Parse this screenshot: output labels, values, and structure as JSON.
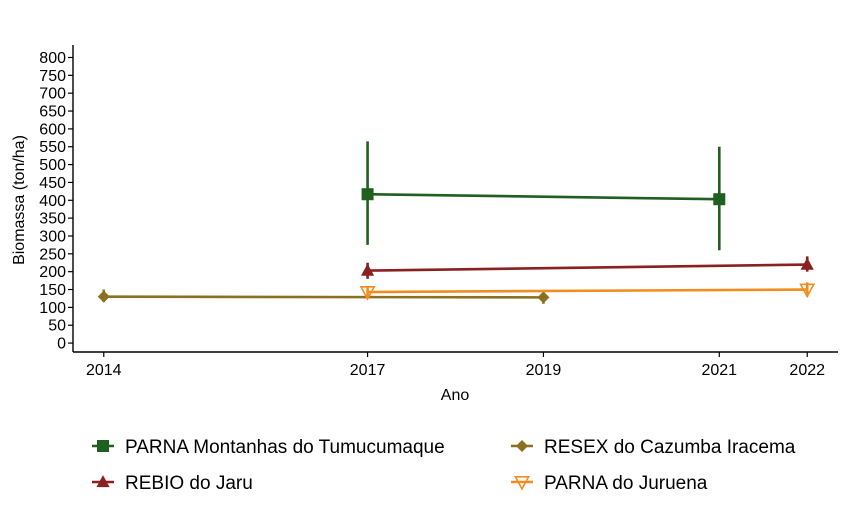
{
  "chart_data": {
    "type": "line",
    "xlabel": "Ano",
    "ylabel": "Biomassa (ton/ha)",
    "x_ticks": [
      2014,
      2017,
      2019,
      2021,
      2022
    ],
    "y_ticks": [
      0,
      50,
      100,
      150,
      200,
      250,
      300,
      350,
      400,
      450,
      500,
      550,
      600,
      650,
      700,
      750,
      800
    ],
    "xlim": [
      2013.65,
      2022.35
    ],
    "ylim": [
      -25,
      835
    ],
    "grid": false,
    "legend_position": "bottom",
    "series": [
      {
        "name": "PARNA Montanhas do Tumucumaque",
        "color": "#1f5f1f",
        "marker": "square",
        "points": [
          {
            "x": 2017,
            "y": 417,
            "ymin": 275,
            "ymax": 565
          },
          {
            "x": 2021,
            "y": 403,
            "ymin": 260,
            "ymax": 550
          }
        ]
      },
      {
        "name": "RESEX do Cazumba Iracema",
        "color": "#8b7020",
        "marker": "diamond",
        "points": [
          {
            "x": 2014,
            "y": 130,
            "ymin": 115,
            "ymax": 150
          },
          {
            "x": 2019,
            "y": 128,
            "ymin": 110,
            "ymax": 145
          }
        ]
      },
      {
        "name": "REBIO do Jaru",
        "color": "#8b2020",
        "marker": "triangle",
        "points": [
          {
            "x": 2017,
            "y": 203,
            "ymin": 180,
            "ymax": 225
          },
          {
            "x": 2022,
            "y": 220,
            "ymin": 200,
            "ymax": 243
          }
        ]
      },
      {
        "name": "PARNA do Juruena",
        "color": "#f28c1c",
        "marker": "triangle-down-open",
        "points": [
          {
            "x": 2017,
            "y": 143,
            "ymin": 125,
            "ymax": 160
          },
          {
            "x": 2022,
            "y": 150,
            "ymin": 130,
            "ymax": 170
          }
        ]
      }
    ]
  }
}
